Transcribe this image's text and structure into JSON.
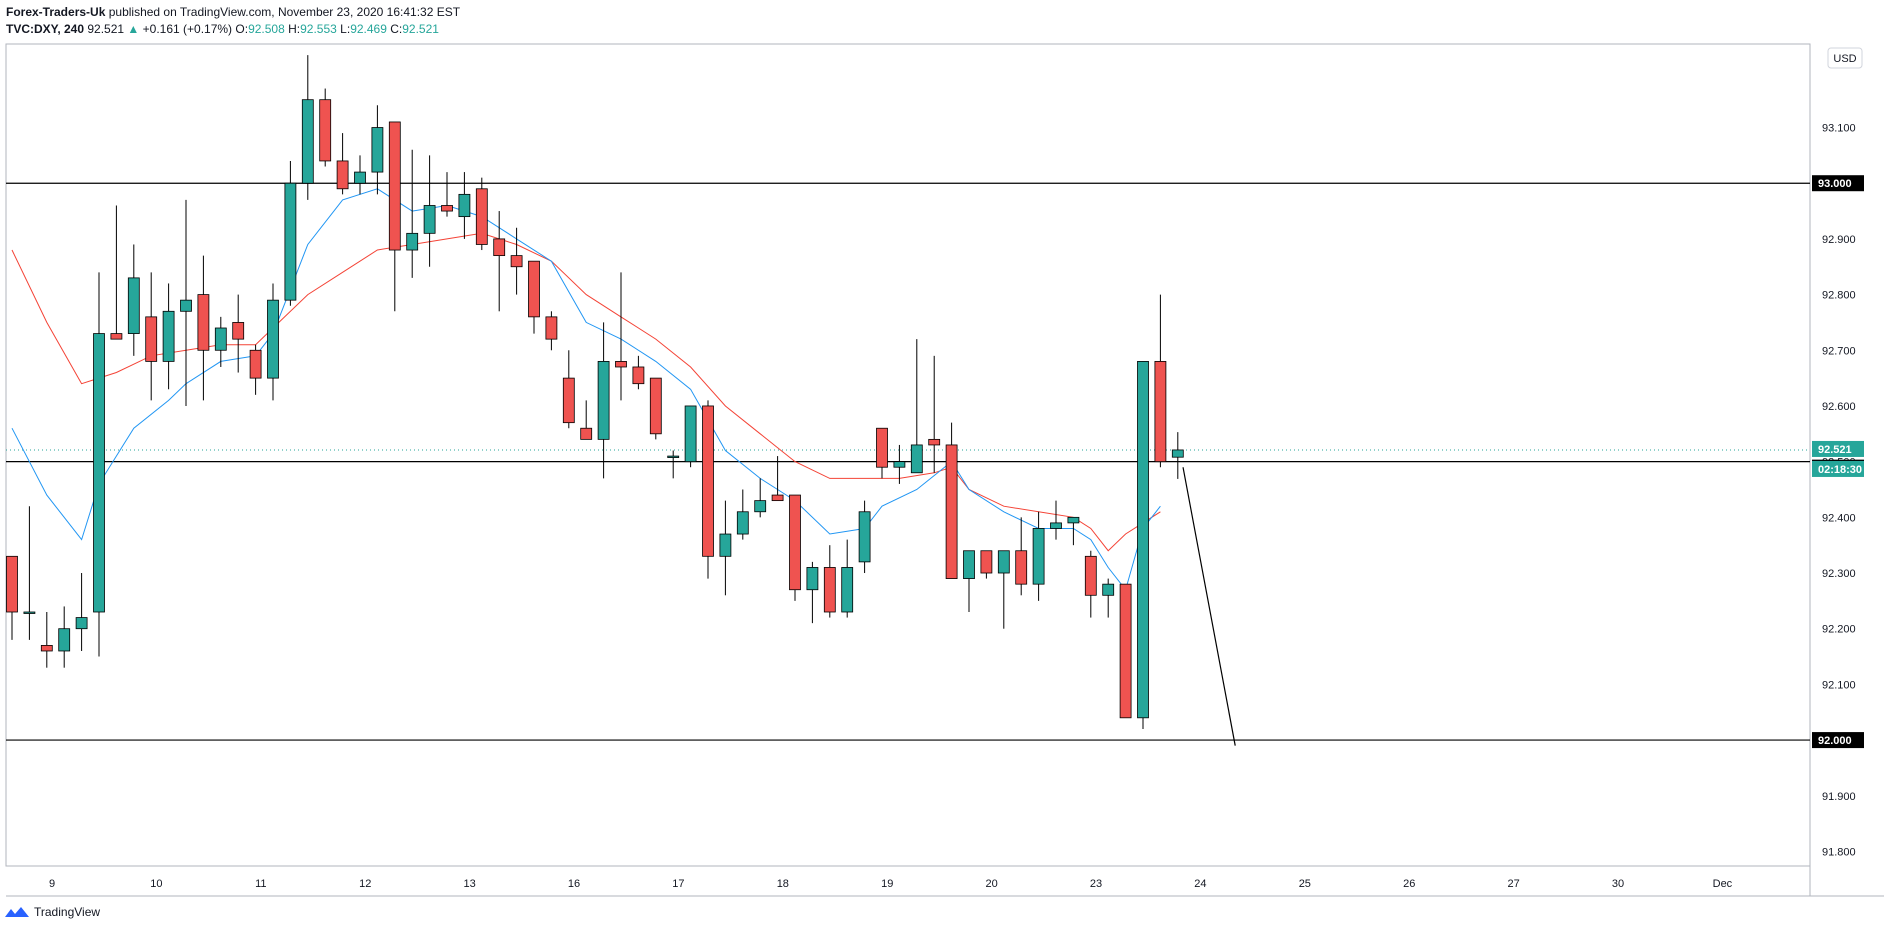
{
  "header": {
    "author": "Forex-Traders-Uk",
    "published_text": "published on TradingView.com, November 23, 2020 16:41:32 EST",
    "symbol_text": "TVC:DXY, 240",
    "last": "92.521",
    "change": "+0.161 (+0.17%)",
    "o_label": "O:",
    "o_value": "92.508",
    "h_label": "H:",
    "h_value": "92.553",
    "l_label": "L:",
    "l_value": "92.469",
    "c_label": "C:",
    "c_value": "92.521"
  },
  "currency_badge": "USD",
  "footer": {
    "brand": "TradingView"
  },
  "colors": {
    "up": "#26a69a",
    "down": "#ef5350",
    "ema_fast": "#2196f3",
    "ema_slow": "#f44336",
    "hline": "#000000"
  },
  "chart_data": {
    "type": "candlestick",
    "ylim": [
      91.72,
      93.25
    ],
    "y_ticks": [
      91.8,
      91.9,
      92.0,
      92.1,
      92.2,
      92.3,
      92.4,
      92.5,
      92.6,
      92.7,
      92.8,
      92.9,
      93.0,
      93.1
    ],
    "y_tick_labels": [
      "91.800",
      "91.900",
      "92.000",
      "92.100",
      "92.200",
      "92.300",
      "92.400",
      "92.500",
      "92.600",
      "92.700",
      "92.800",
      "92.900",
      "93.000",
      "93.100"
    ],
    "x_tick_labels": [
      {
        "label": "9",
        "bar": 2
      },
      {
        "label": "10",
        "bar": 8
      },
      {
        "label": "11",
        "bar": 14
      },
      {
        "label": "12",
        "bar": 20
      },
      {
        "label": "13",
        "bar": 26
      },
      {
        "label": "16",
        "bar": 32
      },
      {
        "label": "17",
        "bar": 38
      },
      {
        "label": "18",
        "bar": 44
      },
      {
        "label": "19",
        "bar": 50
      },
      {
        "label": "20",
        "bar": 56
      },
      {
        "label": "23",
        "bar": 62
      },
      {
        "label": "24",
        "bar": 68
      },
      {
        "label": "25",
        "bar": 74
      },
      {
        "label": "26",
        "bar": 80
      },
      {
        "label": "27",
        "bar": 86
      },
      {
        "label": "30",
        "bar": 92
      },
      {
        "label": "Dec",
        "bar": 98
      }
    ],
    "ohlc": [
      [
        92.33,
        92.33,
        92.18,
        92.23
      ],
      [
        92.23,
        92.42,
        92.18,
        92.23
      ],
      [
        92.17,
        92.23,
        92.13,
        92.16
      ],
      [
        92.16,
        92.24,
        92.13,
        92.2
      ],
      [
        92.2,
        92.3,
        92.16,
        92.22
      ],
      [
        92.23,
        92.84,
        92.15,
        92.73
      ],
      [
        92.73,
        92.96,
        92.72,
        92.72
      ],
      [
        92.73,
        92.89,
        92.69,
        92.83
      ],
      [
        92.76,
        92.84,
        92.61,
        92.68
      ],
      [
        92.68,
        92.82,
        92.63,
        92.77
      ],
      [
        92.77,
        92.97,
        92.6,
        92.79
      ],
      [
        92.8,
        92.87,
        92.61,
        92.7
      ],
      [
        92.7,
        92.76,
        92.67,
        92.74
      ],
      [
        92.75,
        92.8,
        92.66,
        92.72
      ],
      [
        92.7,
        92.71,
        92.62,
        92.65
      ],
      [
        92.65,
        92.82,
        92.61,
        92.79
      ],
      [
        92.79,
        93.04,
        92.78,
        93.0
      ],
      [
        93.0,
        93.23,
        92.97,
        93.15
      ],
      [
        93.15,
        93.17,
        93.03,
        93.04
      ],
      [
        93.04,
        93.09,
        92.98,
        92.99
      ],
      [
        93.0,
        93.05,
        92.98,
        93.02
      ],
      [
        93.02,
        93.14,
        92.98,
        93.1
      ],
      [
        93.11,
        93.11,
        92.77,
        92.88
      ],
      [
        92.88,
        93.06,
        92.83,
        92.91
      ],
      [
        92.91,
        93.05,
        92.85,
        92.96
      ],
      [
        92.96,
        93.02,
        92.94,
        92.95
      ],
      [
        92.94,
        93.02,
        92.9,
        92.98
      ],
      [
        92.99,
        93.01,
        92.88,
        92.89
      ],
      [
        92.9,
        92.95,
        92.77,
        92.87
      ],
      [
        92.87,
        92.92,
        92.8,
        92.85
      ],
      [
        92.86,
        92.86,
        92.73,
        92.76
      ],
      [
        92.76,
        92.77,
        92.7,
        92.72
      ],
      [
        92.65,
        92.7,
        92.56,
        92.57
      ],
      [
        92.56,
        92.61,
        92.54,
        92.54
      ],
      [
        92.54,
        92.75,
        92.47,
        92.68
      ],
      [
        92.68,
        92.84,
        92.61,
        92.67
      ],
      [
        92.67,
        92.69,
        92.63,
        92.64
      ],
      [
        92.65,
        92.65,
        92.54,
        92.55
      ],
      [
        92.51,
        92.52,
        92.47,
        92.51
      ],
      [
        92.5,
        92.6,
        92.49,
        92.6
      ],
      [
        92.6,
        92.61,
        92.29,
        92.33
      ],
      [
        92.33,
        92.43,
        92.26,
        92.37
      ],
      [
        92.37,
        92.45,
        92.36,
        92.41
      ],
      [
        92.41,
        92.47,
        92.4,
        92.43
      ],
      [
        92.44,
        92.51,
        92.43,
        92.43
      ],
      [
        92.44,
        92.44,
        92.25,
        92.27
      ],
      [
        92.27,
        92.32,
        92.21,
        92.31
      ],
      [
        92.31,
        92.35,
        92.22,
        92.23
      ],
      [
        92.23,
        92.36,
        92.22,
        92.31
      ],
      [
        92.32,
        92.43,
        92.3,
        92.41
      ],
      [
        92.56,
        92.56,
        92.47,
        92.49
      ],
      [
        92.49,
        92.53,
        92.46,
        92.5
      ],
      [
        92.48,
        92.72,
        92.48,
        92.53
      ],
      [
        92.54,
        92.69,
        92.48,
        92.53
      ],
      [
        92.53,
        92.57,
        92.29,
        92.29
      ],
      [
        92.29,
        92.34,
        92.23,
        92.34
      ],
      [
        92.34,
        92.34,
        92.29,
        92.3
      ],
      [
        92.3,
        92.34,
        92.2,
        92.34
      ],
      [
        92.34,
        92.4,
        92.26,
        92.28
      ],
      [
        92.28,
        92.41,
        92.25,
        92.38
      ],
      [
        92.38,
        92.43,
        92.36,
        92.39
      ],
      [
        92.39,
        92.4,
        92.35,
        92.4
      ],
      [
        92.33,
        92.34,
        92.22,
        92.26
      ],
      [
        92.26,
        92.29,
        92.22,
        92.28
      ],
      [
        92.28,
        92.28,
        92.04,
        92.04
      ],
      [
        92.04,
        92.68,
        92.02,
        92.68
      ],
      [
        92.68,
        92.8,
        92.49,
        92.5
      ],
      [
        92.508,
        92.553,
        92.469,
        92.521
      ]
    ],
    "ema_fast": [
      [
        0,
        92.56
      ],
      [
        2,
        92.44
      ],
      [
        4,
        92.36
      ],
      [
        5,
        92.46
      ],
      [
        7,
        92.56
      ],
      [
        9,
        92.61
      ],
      [
        10,
        92.64
      ],
      [
        12,
        92.68
      ],
      [
        14,
        92.69
      ],
      [
        15,
        92.73
      ],
      [
        17,
        92.89
      ],
      [
        19,
        92.97
      ],
      [
        21,
        92.99
      ],
      [
        23,
        92.95
      ],
      [
        25,
        92.96
      ],
      [
        27,
        92.94
      ],
      [
        29,
        92.9
      ],
      [
        31,
        92.86
      ],
      [
        33,
        92.75
      ],
      [
        35,
        92.72
      ],
      [
        37,
        92.68
      ],
      [
        39,
        92.63
      ],
      [
        41,
        92.52
      ],
      [
        43,
        92.47
      ],
      [
        45,
        92.43
      ],
      [
        47,
        92.37
      ],
      [
        49,
        92.38
      ],
      [
        50,
        92.42
      ],
      [
        52,
        92.45
      ],
      [
        54,
        92.5
      ],
      [
        55,
        92.45
      ],
      [
        57,
        92.41
      ],
      [
        59,
        92.38
      ],
      [
        61,
        92.38
      ],
      [
        62,
        92.36
      ],
      [
        63,
        92.31
      ],
      [
        64,
        92.27
      ],
      [
        65,
        92.38
      ],
      [
        66,
        92.42
      ]
    ],
    "ema_slow": [
      [
        0,
        92.88
      ],
      [
        2,
        92.75
      ],
      [
        4,
        92.64
      ],
      [
        6,
        92.66
      ],
      [
        8,
        92.69
      ],
      [
        10,
        92.7
      ],
      [
        12,
        92.71
      ],
      [
        14,
        92.71
      ],
      [
        15,
        92.74
      ],
      [
        17,
        92.8
      ],
      [
        19,
        92.84
      ],
      [
        21,
        92.88
      ],
      [
        23,
        92.89
      ],
      [
        25,
        92.9
      ],
      [
        27,
        92.91
      ],
      [
        29,
        92.89
      ],
      [
        31,
        92.86
      ],
      [
        33,
        92.8
      ],
      [
        35,
        92.76
      ],
      [
        37,
        92.72
      ],
      [
        39,
        92.67
      ],
      [
        41,
        92.6
      ],
      [
        43,
        92.55
      ],
      [
        45,
        92.5
      ],
      [
        47,
        92.47
      ],
      [
        49,
        92.47
      ],
      [
        51,
        92.47
      ],
      [
        53,
        92.48
      ],
      [
        54,
        92.49
      ],
      [
        55,
        92.45
      ],
      [
        57,
        92.42
      ],
      [
        59,
        92.41
      ],
      [
        61,
        92.4
      ],
      [
        62,
        92.38
      ],
      [
        63,
        92.34
      ],
      [
        64,
        92.37
      ],
      [
        65,
        92.39
      ],
      [
        66,
        92.41
      ]
    ],
    "hlines": [
      {
        "value": 93.0,
        "label": "93.000"
      },
      {
        "value": 92.5,
        "label": "92.500"
      },
      {
        "value": 92.0,
        "label": "92.000"
      }
    ],
    "last_price": {
      "value": 92.521,
      "label": "92.521",
      "countdown": "02:18:30"
    },
    "trend_line": {
      "from": [
        67.3,
        92.49
      ],
      "to": [
        70.3,
        91.99
      ]
    }
  }
}
